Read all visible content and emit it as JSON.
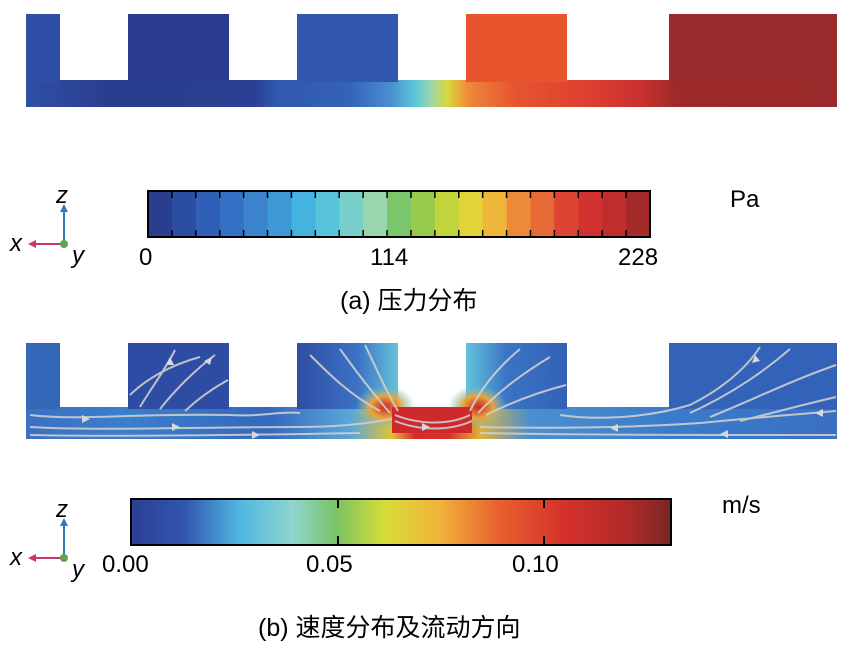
{
  "panel_a": {
    "colorbar": {
      "ticks": [
        "0",
        "114",
        "228"
      ],
      "unit": "Pa",
      "colors": [
        "#2a3e8f",
        "#2b4ea3",
        "#2f5fb6",
        "#3371c4",
        "#3b84cc",
        "#3d99d6",
        "#45b3e0",
        "#57c3dc",
        "#79cfc9",
        "#98d6ad",
        "#7bc56b",
        "#96cb4d",
        "#c2d43b",
        "#e2d33a",
        "#efb73a",
        "#ec8a3a",
        "#e66a36",
        "#dd4433",
        "#d2322f",
        "#bf2d2c",
        "#a52a2a"
      ]
    },
    "caption_prefix": "(a)",
    "caption_text": "压力分布"
  },
  "panel_b": {
    "colorbar": {
      "ticks": [
        "0.00",
        "0.05",
        "0.10"
      ],
      "unit": "m/s"
    },
    "caption_prefix": "(b)",
    "caption_text": "速度分布及流动方向"
  },
  "triad": {
    "z": "z",
    "x": "x",
    "y": "y"
  }
}
